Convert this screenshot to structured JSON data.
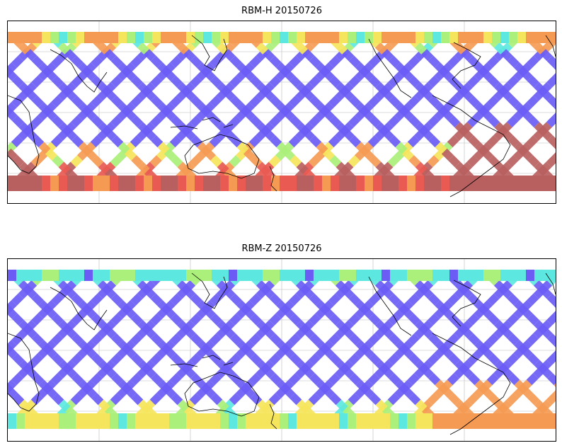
{
  "panels": [
    {
      "title": "RBM-H 20150726",
      "variant": "H"
    },
    {
      "title": "RBM-Z 20150726",
      "variant": "Z"
    }
  ],
  "colors": {
    "low": "#6a5cf5",
    "cyan": "#5ce8e0",
    "green": "#aaf07a",
    "yellow": "#f5e55c",
    "orange": "#f59a52",
    "high": "#e85a52",
    "max": "#b86060",
    "coast": "#000000",
    "grid": "#bbbbbb"
  }
}
